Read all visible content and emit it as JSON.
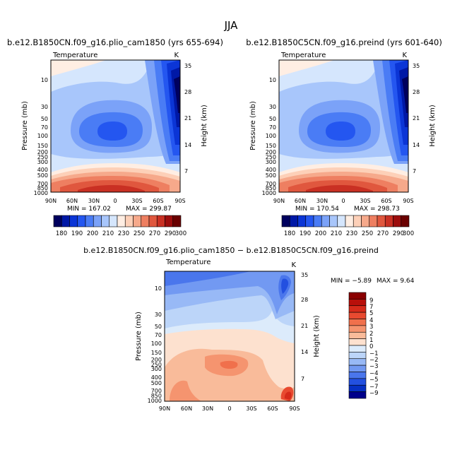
{
  "figure_title": "JJA",
  "chart_data": [
    {
      "type": "heatmap",
      "id": "p1",
      "title": "b.e12.B1850CN.f09_g16.plio_cam1850 (yrs 655-694)",
      "subtitle_left": "Temperature",
      "units": "K",
      "xlabel": "",
      "ylabel": "Pressure (mb)",
      "y2label": "Height (km)",
      "x_ticks": [
        "90N",
        "60N",
        "30N",
        "0",
        "30S",
        "60S",
        "90S"
      ],
      "y_ticks": [
        "10",
        "30",
        "50",
        "70",
        "100",
        "150",
        "200",
        "250",
        "300",
        "400",
        "500",
        "700",
        "850",
        "1000"
      ],
      "height_ticks": [
        "35",
        "28",
        "21",
        "14",
        "7"
      ],
      "ylim_mb": [
        1000,
        3
      ],
      "min_label": "MIN = 167.02",
      "max_label": "MAX = 299.87",
      "min": 167.02,
      "max": 299.87,
      "colorbar_labels": [
        "180",
        "190",
        "200",
        "210",
        "230",
        "250",
        "270",
        "290",
        "300"
      ]
    },
    {
      "type": "heatmap",
      "id": "p2",
      "title": "b.e12.B1850C5CN.f09_g16.preind (yrs 601-640)",
      "subtitle_left": "Temperature",
      "units": "K",
      "xlabel": "",
      "ylabel": "Pressure (mb)",
      "y2label": "Height (km)",
      "x_ticks": [
        "90N",
        "60N",
        "30N",
        "0",
        "30S",
        "60S",
        "90S"
      ],
      "y_ticks": [
        "10",
        "30",
        "50",
        "70",
        "100",
        "150",
        "200",
        "250",
        "300",
        "400",
        "500",
        "700",
        "850",
        "1000"
      ],
      "height_ticks": [
        "35",
        "28",
        "21",
        "14",
        "7"
      ],
      "ylim_mb": [
        1000,
        3
      ],
      "min_label": "MIN = 170.54",
      "max_label": "MAX = 298.73",
      "min": 170.54,
      "max": 298.73,
      "colorbar_labels": [
        "180",
        "190",
        "200",
        "210",
        "230",
        "250",
        "270",
        "290",
        "300"
      ]
    },
    {
      "type": "heatmap",
      "id": "p3",
      "title": "b.e12.B1850CN.f09_g16.plio_cam1850 − b.e12.B1850C5CN.f09_g16.preind",
      "subtitle_left": "Temperature",
      "units": "K",
      "xlabel": "",
      "ylabel": "Pressure (mb)",
      "y2label": "Height (km)",
      "x_ticks": [
        "90N",
        "60N",
        "30N",
        "0",
        "30S",
        "60S",
        "90S"
      ],
      "y_ticks": [
        "10",
        "30",
        "50",
        "70",
        "100",
        "150",
        "200",
        "250",
        "300",
        "400",
        "500",
        "700",
        "850",
        "1000"
      ],
      "height_ticks": [
        "35",
        "28",
        "21",
        "14",
        "7"
      ],
      "ylim_mb": [
        1000,
        3
      ],
      "min_label": "MIN = −5.89",
      "max_label": "MAX =   9.64",
      "min": -5.89,
      "max": 9.64,
      "colorbar_labels": [
        "9",
        "7",
        "5",
        "4",
        "3",
        "2",
        "1",
        "0",
        "−1",
        "−2",
        "−3",
        "−4",
        "−5",
        "−7",
        "−9"
      ]
    }
  ],
  "colors": {
    "abs_palette": [
      "#00005e",
      "#0018a6",
      "#0b35d6",
      "#2456f0",
      "#4a7cf5",
      "#7ba2f8",
      "#a8c6fb",
      "#d5e6fd",
      "#ffeee3",
      "#fdd0b8",
      "#f6a98b",
      "#ee7f61",
      "#e0573e",
      "#c93023",
      "#9c0d0d",
      "#6a0000"
    ],
    "diff_palette": [
      "#8a0000",
      "#b80f0a",
      "#d62a1a",
      "#e84a30",
      "#f0704c",
      "#f5946f",
      "#f9bb9a",
      "#fde1cf",
      "#dcebfb",
      "#bcd5f9",
      "#98b9f6",
      "#7299f2",
      "#4a76ec",
      "#2350e0",
      "#0630c4",
      "#00008a"
    ]
  }
}
